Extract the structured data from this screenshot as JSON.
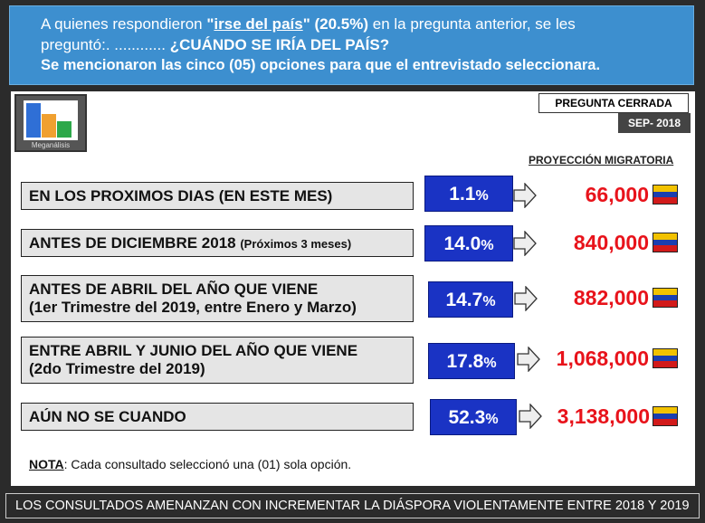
{
  "header": {
    "line1_pre": "A quienes respondieron ",
    "line1_bold_quote_open": "\"",
    "line1_underline": "irse del país",
    "line1_bold_rest": "\" (20.5%)",
    "line1_post": " en la pregunta anterior, se les",
    "line2_pre": "preguntó:. ............ ",
    "line2_bold": "¿CUÁNDO SE IRÍA DEL PAÍS?",
    "line3": "Se mencionaron las cinco (05) opciones para que el entrevistado seleccionara."
  },
  "logo": {
    "caption": "Meganálisis",
    "icon": "bar-chart-logo-icon"
  },
  "tag": {
    "pregunta": "PREGUNTA CERRADA",
    "fecha": "SEP- 2018"
  },
  "proyeccion_label": "PROYECCIÓN MIGRATORIA",
  "rows": [
    {
      "label": "EN LOS PROXIMOS DIAS (EN ESTE MES)",
      "sub": "",
      "pct": "1.1",
      "pct_sign": "%",
      "num": "66,000"
    },
    {
      "label": "ANTES DE DICIEMBRE 2018 ",
      "sub": "(Próximos 3 meses)",
      "pct": "14.0",
      "pct_sign": "%",
      "num": "840,000"
    },
    {
      "label": "ANTES DE ABRIL DEL AÑO QUE VIENE",
      "sub": "(1er Trimestre del 2019, entre Enero y Marzo)",
      "pct": "14.7",
      "pct_sign": "%",
      "num": "882,000"
    },
    {
      "label": "ENTRE ABRIL Y JUNIO DEL AÑO QUE VIENE",
      "sub": "(2do Trimestre del 2019)",
      "pct": "17.8",
      "pct_sign": "%",
      "num": "1,068,000"
    },
    {
      "label": "AÚN NO SE CUANDO",
      "sub": "",
      "pct": "52.3",
      "pct_sign": "%",
      "num": "3,138,000"
    }
  ],
  "nota": {
    "label": "NOTA",
    "text": ": Cada consultado seleccionó una (01) sola opción."
  },
  "footer": "LOS CONSULTADOS AMENANZAN CON INCREMENTAR LA DIÁSPORA VIOLENTAMENTE ENTRE  2018 Y 2019",
  "colors": {
    "header_bg": "#3d8fcf",
    "pct_bg": "#1a33c4",
    "num": "#e8131b",
    "flag_yellow": "#f2c200",
    "flag_blue": "#1a3fb0",
    "flag_red": "#d21a1a"
  }
}
